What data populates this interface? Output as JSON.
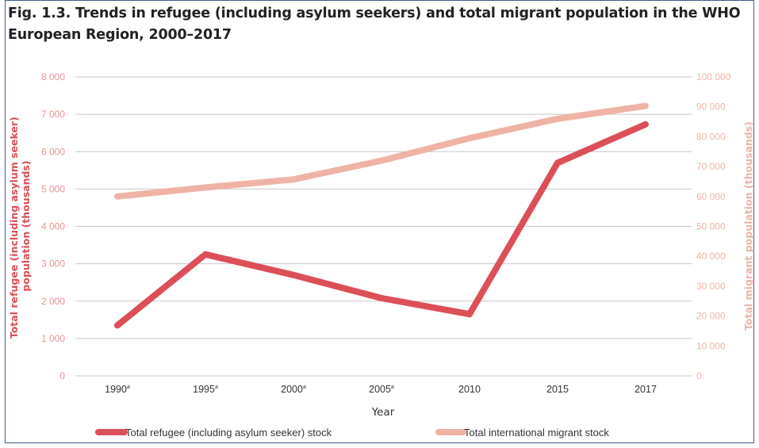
{
  "figure": {
    "title": "Fig. 1.3. Trends in refugee (including asylum seekers) and total migrant population in the WHO European Region, 2000–2017"
  },
  "chart_data": {
    "type": "line",
    "title": "Fig. 1.3. Trends in refugee (including asylum seekers) and total migrant population in the WHO European Region, 2000–2017",
    "xlabel": "Year",
    "ylabel_left": "Total refugee (including asylum seeker) population (thousands)",
    "ylabel_right": "Total migrant population (thousands)",
    "categories": [
      "1990",
      "1995",
      "2000",
      "2005",
      "2010",
      "2015",
      "2017"
    ],
    "category_superscripts": [
      "a",
      "a",
      "a",
      "a",
      "",
      "",
      ""
    ],
    "y_left": {
      "lim": [
        0,
        8000
      ],
      "ticks": [
        "0",
        "1 000",
        "2 000",
        "3 000",
        "4 000",
        "5 000",
        "6 000",
        "7 000",
        "8 000"
      ]
    },
    "y_right": {
      "lim": [
        0,
        100000
      ],
      "ticks": [
        "0",
        "10 000",
        "20 000",
        "30 000",
        "40 000",
        "50 000",
        "60 000",
        "70 000",
        "80 000",
        "90 000",
        "100 000"
      ]
    },
    "grid": true,
    "legend_position": "bottom",
    "series": [
      {
        "name": "Total refugee (including asylum seeker) stock",
        "axis": "left",
        "color": "#dc4f57",
        "values": [
          1350,
          3250,
          2700,
          2080,
          1650,
          5700,
          6730
        ]
      },
      {
        "name": "Total international migrant stock",
        "axis": "right",
        "color": "#efb3a6",
        "values": [
          60000,
          63000,
          65700,
          72000,
          79500,
          86000,
          90300
        ]
      }
    ],
    "colors": {
      "axis_text": "#e8938f",
      "left_label": "#dc4f57",
      "right_label": "#efb3a6",
      "grid": "#c8c8c8",
      "dark_text": "#333333"
    }
  }
}
